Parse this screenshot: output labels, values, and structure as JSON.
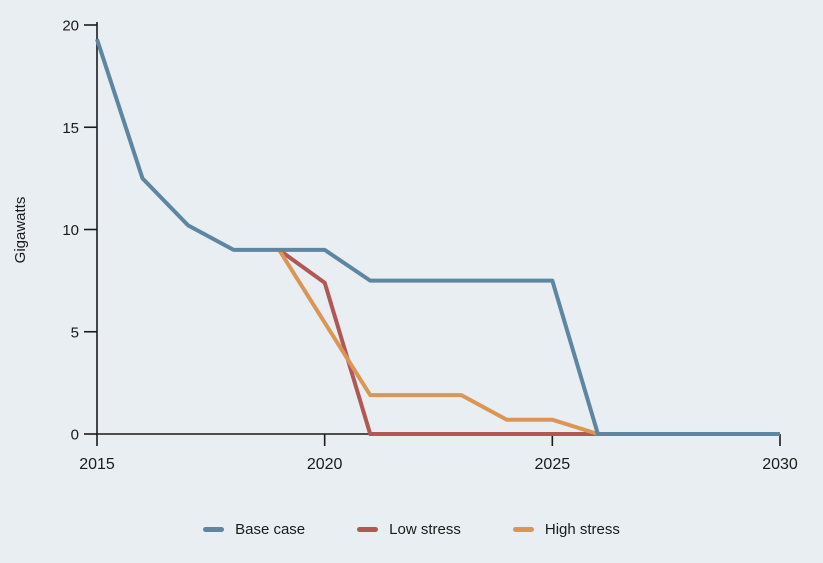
{
  "page": {
    "background_color": "#e8eef1",
    "text_color": "#1b1b1b"
  },
  "chart_data": {
    "type": "line",
    "title": "",
    "xlabel": "",
    "ylabel": "Gigawatts",
    "xlim": [
      2015,
      2030
    ],
    "ylim": [
      0,
      20
    ],
    "xticks": [
      "2015",
      "2020",
      "2025",
      "2030"
    ],
    "yticks": [
      "0",
      "5",
      "10",
      "15",
      "20"
    ],
    "grid": false,
    "legend_position": "bottom-center",
    "axis_color": "#1b1b1b",
    "line_width": 4,
    "series": [
      {
        "name": "Base case",
        "color": "#5e86a1",
        "x": [
          2015,
          2016,
          2017,
          2018,
          2020,
          2021,
          2025,
          2026,
          2030
        ],
        "y": [
          19.3,
          12.5,
          10.2,
          9,
          9,
          7.5,
          7.5,
          0,
          0
        ]
      },
      {
        "name": "Low stress",
        "color": "#b15754",
        "x": [
          2019,
          2020,
          2021,
          2030
        ],
        "y": [
          9,
          7.4,
          0,
          0
        ]
      },
      {
        "name": "High stress",
        "color": "#db9655",
        "x": [
          2019,
          2021,
          2023,
          2024,
          2025,
          2026,
          2030
        ],
        "y": [
          9,
          1.9,
          1.9,
          0.7,
          0.7,
          0,
          0
        ]
      }
    ],
    "draw_order": [
      "Low stress",
      "High stress",
      "Base case"
    ]
  }
}
